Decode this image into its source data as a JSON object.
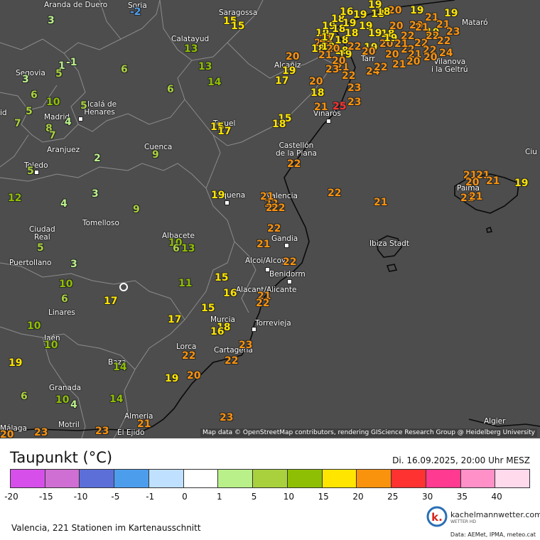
{
  "title": "Taupunkt (°C)",
  "datetime": "Di. 16.09.2025, 20:00 Uhr MESZ",
  "footer": "Valencia, 221 Stationen im Kartenausschnitt",
  "attribution": "Map data © OpenStreetMap contributors, rendering GIScience Research Group @ Heidelberg University",
  "logo_text": "kachelmannwetter.com",
  "logo_sub": "WETTER HD",
  "data_sources": "Data: AEMet, IPMA, meteo.cat",
  "scale": {
    "ticks": [
      "-20",
      "-15",
      "-10",
      "-5",
      "-1",
      "0",
      "1",
      "5",
      "10",
      "15",
      "20",
      "25",
      "30",
      "35",
      "40"
    ],
    "colors": [
      "#d64fea",
      "#cf6fd3",
      "#5c6fd9",
      "#4d9ded",
      "#bfe0ff",
      "#ffffff",
      "#b9f08a",
      "#a9d13e",
      "#8fbf05",
      "#ffe500",
      "#f9920d",
      "#ff3232",
      "#ff3a90",
      "#ff91c8",
      "#ffd9ec"
    ]
  },
  "cities": [
    {
      "name": "Aranda de Duero"
    },
    {
      "name": "Soria"
    },
    {
      "name": "Saragossa"
    },
    {
      "name": "Calatayud"
    },
    {
      "name": "Segovia"
    },
    {
      "name": "Alcañiz"
    },
    {
      "name": "Madrid"
    },
    {
      "name": "Alcalá de Henares"
    },
    {
      "name": "Vilanova i la Geltrú"
    },
    {
      "name": "Teruel"
    },
    {
      "name": "Vinaròs"
    },
    {
      "name": "Castellón de la Plana"
    },
    {
      "name": "Aranjuez"
    },
    {
      "name": "Cuenca"
    },
    {
      "name": "Toledo"
    },
    {
      "name": "Requena"
    },
    {
      "name": "Valencia"
    },
    {
      "name": "Palma"
    },
    {
      "name": "Tomelloso"
    },
    {
      "name": "Ciudad Real"
    },
    {
      "name": "Albacete"
    },
    {
      "name": "Gandia"
    },
    {
      "name": "Ibiza Stadt"
    },
    {
      "name": "Puertollano"
    },
    {
      "name": "Alcoi/Alcoy"
    },
    {
      "name": "Benidorm"
    },
    {
      "name": "Alacant/Alicante"
    },
    {
      "name": "Linares"
    },
    {
      "name": "Murcia"
    },
    {
      "name": "Torrevieja"
    },
    {
      "name": "Jaén"
    },
    {
      "name": "Lorca"
    },
    {
      "name": "Cartagena"
    },
    {
      "name": "Baza"
    },
    {
      "name": "Granada"
    },
    {
      "name": "Almeria"
    },
    {
      "name": "Motril"
    },
    {
      "name": "El Ejido"
    },
    {
      "name": "Málaga"
    },
    {
      "name": "Algier"
    },
    {
      "name": "Ciu"
    },
    {
      "name": "Mataró"
    },
    {
      "name": "Tarr"
    },
    {
      "name": "id"
    }
  ],
  "stations": [
    {
      "v": "3"
    },
    {
      "v": "-2"
    },
    {
      "v": "15"
    },
    {
      "v": "15"
    },
    {
      "v": "13"
    },
    {
      "v": "1"
    },
    {
      "v": "-1"
    },
    {
      "v": "5"
    },
    {
      "v": "6"
    },
    {
      "v": "3"
    },
    {
      "v": "6"
    },
    {
      "v": "10"
    },
    {
      "v": "5"
    },
    {
      "v": "5"
    },
    {
      "v": "4"
    },
    {
      "v": "8"
    },
    {
      "v": "7"
    },
    {
      "v": "7"
    },
    {
      "v": "6"
    },
    {
      "v": "13"
    },
    {
      "v": "14"
    },
    {
      "v": "20"
    },
    {
      "v": "19"
    },
    {
      "v": "17"
    },
    {
      "v": "20"
    },
    {
      "v": "18"
    },
    {
      "v": "21"
    },
    {
      "v": "25"
    },
    {
      "v": "23"
    },
    {
      "v": "15"
    },
    {
      "v": "18"
    },
    {
      "v": "15"
    },
    {
      "v": "17"
    },
    {
      "v": "2"
    },
    {
      "v": "9"
    },
    {
      "v": "5"
    },
    {
      "v": "22"
    },
    {
      "v": "12"
    },
    {
      "v": "3"
    },
    {
      "v": "4"
    },
    {
      "v": "9"
    },
    {
      "v": "19"
    },
    {
      "v": "22"
    },
    {
      "v": "22"
    },
    {
      "v": "22"
    },
    {
      "v": "21"
    },
    {
      "v": "21"
    },
    {
      "v": "21"
    },
    {
      "v": "20"
    },
    {
      "v": "21"
    },
    {
      "v": "19"
    },
    {
      "v": "22"
    },
    {
      "v": "21"
    },
    {
      "v": "21"
    },
    {
      "v": "5"
    },
    {
      "v": "10"
    },
    {
      "v": "13"
    },
    {
      "v": "6"
    },
    {
      "v": "22"
    },
    {
      "v": "21"
    },
    {
      "v": "21"
    },
    {
      "v": "3"
    },
    {
      "v": "22"
    },
    {
      "v": "10"
    },
    {
      "v": "6"
    },
    {
      "v": "15"
    },
    {
      "v": "11"
    },
    {
      "v": "16"
    },
    {
      "v": "21"
    },
    {
      "v": "22"
    },
    {
      "v": "17"
    },
    {
      "v": "15"
    },
    {
      "v": "10"
    },
    {
      "v": "17"
    },
    {
      "v": "18"
    },
    {
      "v": "16"
    },
    {
      "v": "10"
    },
    {
      "v": "23"
    },
    {
      "v": "22"
    },
    {
      "v": "22"
    },
    {
      "v": "19"
    },
    {
      "v": "14"
    },
    {
      "v": "19"
    },
    {
      "v": "20"
    },
    {
      "v": "6"
    },
    {
      "v": "10"
    },
    {
      "v": "4"
    },
    {
      "v": "14"
    },
    {
      "v": "23"
    },
    {
      "v": "21"
    },
    {
      "v": "23"
    },
    {
      "v": "23"
    },
    {
      "v": "20"
    },
    {
      "v": "19"
    },
    {
      "v": "20"
    },
    {
      "v": "18"
    },
    {
      "v": "19"
    },
    {
      "v": "21"
    },
    {
      "v": "18"
    },
    {
      "v": "18"
    },
    {
      "v": "19"
    },
    {
      "v": "18"
    },
    {
      "v": "19"
    },
    {
      "v": "16"
    },
    {
      "v": "19"
    },
    {
      "v": "18"
    },
    {
      "v": "18"
    },
    {
      "v": "19"
    },
    {
      "v": "20"
    },
    {
      "v": "19"
    },
    {
      "v": "18"
    },
    {
      "v": "20"
    },
    {
      "v": "19"
    },
    {
      "v": "19"
    },
    {
      "v": "21"
    },
    {
      "v": "20"
    },
    {
      "v": "19"
    },
    {
      "v": "22"
    },
    {
      "v": "22"
    },
    {
      "v": "21"
    },
    {
      "v": "22"
    },
    {
      "v": "24"
    },
    {
      "v": "22"
    },
    {
      "v": "21"
    },
    {
      "v": "20"
    },
    {
      "v": "20"
    },
    {
      "v": "22"
    },
    {
      "v": "23"
    },
    {
      "v": "21"
    },
    {
      "v": "19"
    },
    {
      "v": "22"
    },
    {
      "v": "20"
    },
    {
      "v": "21"
    },
    {
      "v": "23"
    },
    {
      "v": "20"
    },
    {
      "v": "17"
    },
    {
      "v": "18"
    },
    {
      "v": "19"
    },
    {
      "v": "20"
    },
    {
      "v": "22"
    },
    {
      "v": "21"
    },
    {
      "v": "23"
    },
    {
      "v": "22"
    },
    {
      "v": "24"
    },
    {
      "v": "21"
    },
    {
      "v": "22"
    },
    {
      "v": "20"
    },
    {
      "v": "19"
    },
    {
      "v": "21"
    },
    {
      "v": "20"
    },
    {
      "v": "18"
    },
    {
      "v": "19"
    }
  ],
  "colors": {
    "ocean": "#4d4d4d",
    "land": "#4d4d4d",
    "border": "#8a8a8a",
    "coast": "#000000"
  }
}
